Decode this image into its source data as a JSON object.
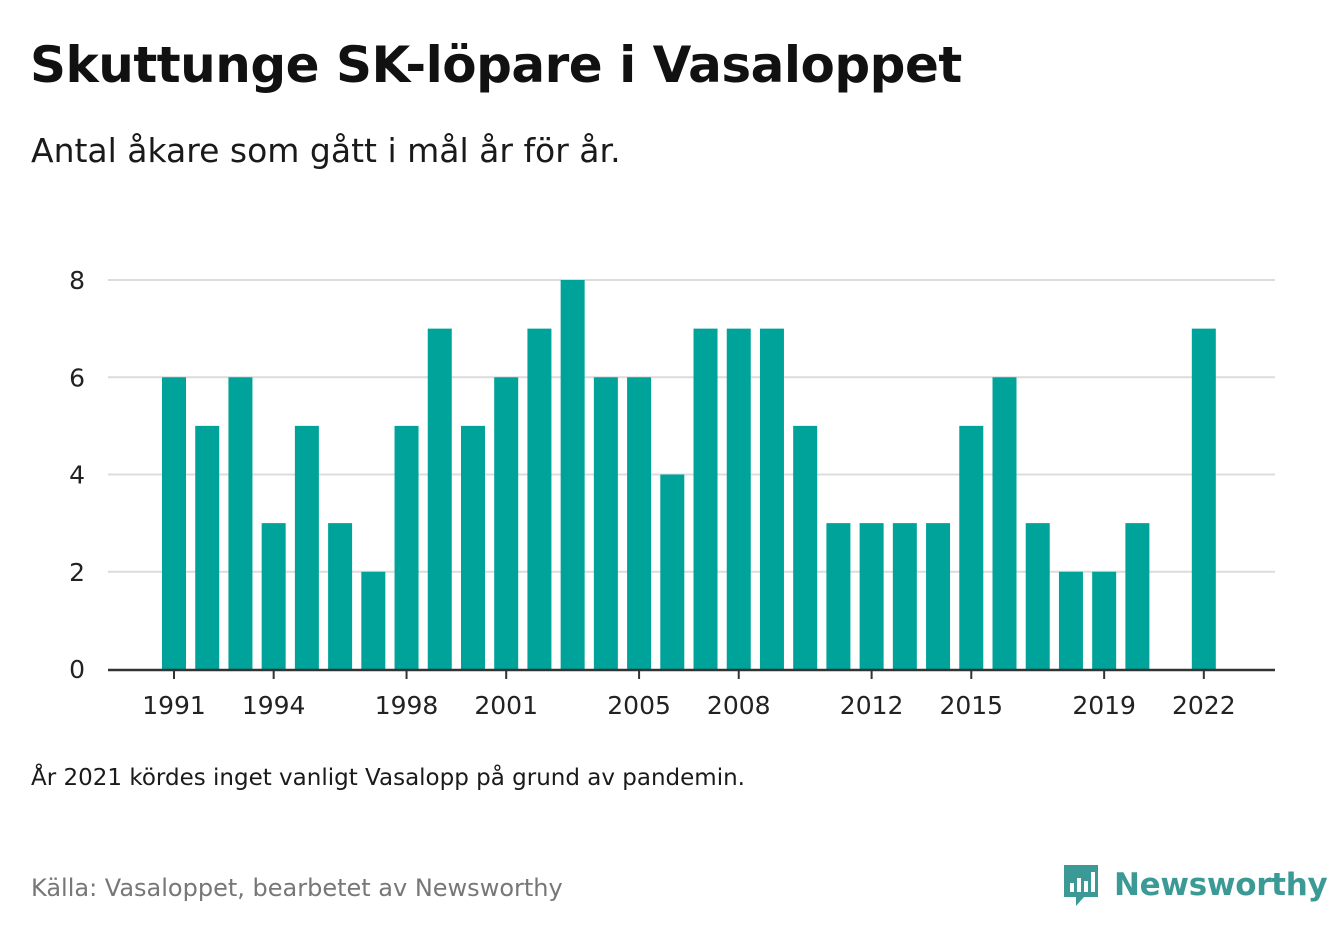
{
  "title": "Skuttunge SK-löpare i Vasaloppet",
  "subtitle": "Antal åkare som gått i mål år för år.",
  "note": "År 2021 kördes inget vanligt Vasalopp på grund av pandemin.",
  "source": "Källa: Vasaloppet, bearbetet av Newsworthy",
  "brand": {
    "name": "Newsworthy",
    "icon": "bar-chart-speech-bubble-icon",
    "color": "#3c9a96"
  },
  "chart_data": {
    "type": "bar",
    "title": "",
    "xlabel": "",
    "ylabel": "",
    "bar_color": "#00a39a",
    "categories": [
      1991,
      1992,
      1993,
      1994,
      1995,
      1996,
      1997,
      1998,
      1999,
      2000,
      2001,
      2002,
      2003,
      2004,
      2005,
      2006,
      2007,
      2008,
      2009,
      2010,
      2011,
      2012,
      2013,
      2014,
      2015,
      2016,
      2017,
      2018,
      2019,
      2020,
      2021,
      2022
    ],
    "values": [
      6,
      5,
      6,
      3,
      5,
      3,
      2,
      5,
      7,
      5,
      6,
      7,
      8,
      6,
      6,
      4,
      7,
      7,
      7,
      5,
      3,
      3,
      3,
      3,
      5,
      6,
      3,
      2,
      2,
      3,
      null,
      7
    ],
    "x_tick_labels": [
      "1991",
      "1994",
      "1998",
      "2001",
      "2005",
      "2008",
      "2012",
      "2015",
      "2019",
      "2022"
    ],
    "y_ticks": [
      0,
      2,
      4,
      6,
      8
    ],
    "ylim": [
      0,
      8
    ],
    "grid": true,
    "legend": false
  }
}
